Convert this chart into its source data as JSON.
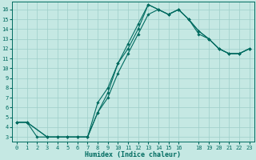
{
  "xlabel": "Humidex (Indice chaleur)",
  "bg_color": "#c5e8e3",
  "grid_color": "#9ecec8",
  "line_color": "#006b60",
  "xlim": [
    -0.5,
    23.5
  ],
  "ylim": [
    2.5,
    16.8
  ],
  "xticks": [
    0,
    1,
    2,
    3,
    4,
    5,
    6,
    7,
    8,
    9,
    10,
    11,
    12,
    13,
    14,
    15,
    16,
    18,
    19,
    20,
    21,
    22,
    23
  ],
  "yticks": [
    3,
    4,
    5,
    6,
    7,
    8,
    9,
    10,
    11,
    12,
    13,
    14,
    15,
    16
  ],
  "curve1_x": [
    0,
    1,
    2,
    3,
    4,
    5,
    6,
    7,
    8,
    9,
    10,
    11,
    12,
    13,
    14,
    15,
    16,
    17,
    18,
    19,
    20,
    21,
    22,
    23
  ],
  "curve1_y": [
    4.5,
    4.5,
    3.0,
    3.0,
    3.0,
    3.0,
    3.0,
    3.0,
    5.5,
    7.5,
    10.5,
    12.5,
    14.5,
    16.5,
    16.0,
    15.5,
    16.0,
    15.0,
    13.5,
    13.0,
    12.0,
    11.5,
    11.5,
    12.0
  ],
  "curve2_x": [
    0,
    1,
    3,
    4,
    5,
    6,
    7,
    8,
    9,
    10,
    11,
    12,
    13,
    14,
    15,
    16,
    17,
    18,
    19,
    20,
    21,
    22,
    23
  ],
  "curve2_y": [
    4.5,
    4.5,
    3.0,
    3.0,
    3.0,
    3.0,
    3.0,
    5.5,
    7.0,
    9.5,
    11.5,
    13.5,
    15.5,
    16.0,
    15.5,
    16.0,
    15.0,
    13.8,
    13.0,
    12.0,
    11.5,
    11.5,
    12.0
  ],
  "curve3_x": [
    0,
    1,
    3,
    4,
    5,
    6,
    7,
    8,
    9,
    10,
    11,
    12,
    13,
    14,
    15,
    16,
    17,
    18,
    19,
    20,
    21,
    22,
    23
  ],
  "curve3_y": [
    4.5,
    4.5,
    3.0,
    3.0,
    3.0,
    3.0,
    3.0,
    6.5,
    8.0,
    10.5,
    12.0,
    14.0,
    16.5,
    16.0,
    15.5,
    16.0,
    15.0,
    13.8,
    13.0,
    12.0,
    11.5,
    11.5,
    12.0
  ]
}
